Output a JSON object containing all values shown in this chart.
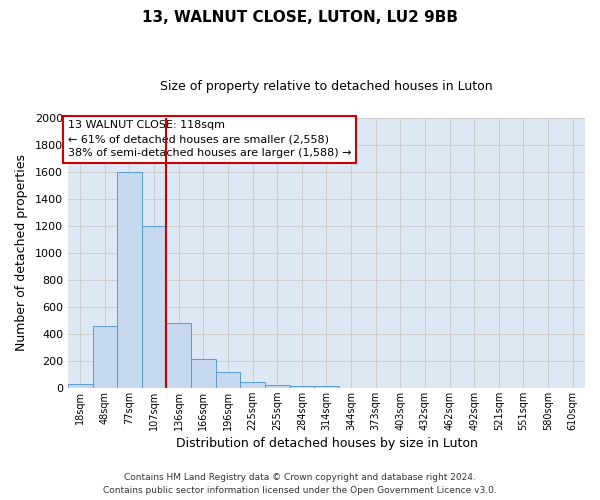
{
  "title": "13, WALNUT CLOSE, LUTON, LU2 9BB",
  "subtitle": "Size of property relative to detached houses in Luton",
  "xlabel": "Distribution of detached houses by size in Luton",
  "ylabel": "Number of detached properties",
  "bin_labels": [
    "18sqm",
    "48sqm",
    "77sqm",
    "107sqm",
    "136sqm",
    "166sqm",
    "196sqm",
    "225sqm",
    "255sqm",
    "284sqm",
    "314sqm",
    "344sqm",
    "373sqm",
    "403sqm",
    "432sqm",
    "462sqm",
    "492sqm",
    "521sqm",
    "551sqm",
    "580sqm",
    "610sqm"
  ],
  "bar_values": [
    30,
    455,
    1600,
    1200,
    480,
    210,
    115,
    45,
    20,
    15,
    10,
    0,
    0,
    0,
    0,
    0,
    0,
    0,
    0,
    0,
    0
  ],
  "bar_color": "#c5d8ed",
  "bar_edge_color": "#5b9bd5",
  "property_line_x": 3.5,
  "property_line_color": "#cc0000",
  "annotation_title": "13 WALNUT CLOSE: 118sqm",
  "annotation_line1": "← 61% of detached houses are smaller (2,558)",
  "annotation_line2": "38% of semi-detached houses are larger (1,588) →",
  "annotation_box_color": "#ffffff",
  "annotation_box_edge_color": "#cc0000",
  "ylim": [
    0,
    2000
  ],
  "yticks": [
    0,
    200,
    400,
    600,
    800,
    1000,
    1200,
    1400,
    1600,
    1800,
    2000
  ],
  "grid_color": "#cccccc",
  "plot_bg_color": "#dce9f5",
  "fig_bg_color": "#ffffff",
  "footer_line1": "Contains HM Land Registry data © Crown copyright and database right 2024.",
  "footer_line2": "Contains public sector information licensed under the Open Government Licence v3.0."
}
